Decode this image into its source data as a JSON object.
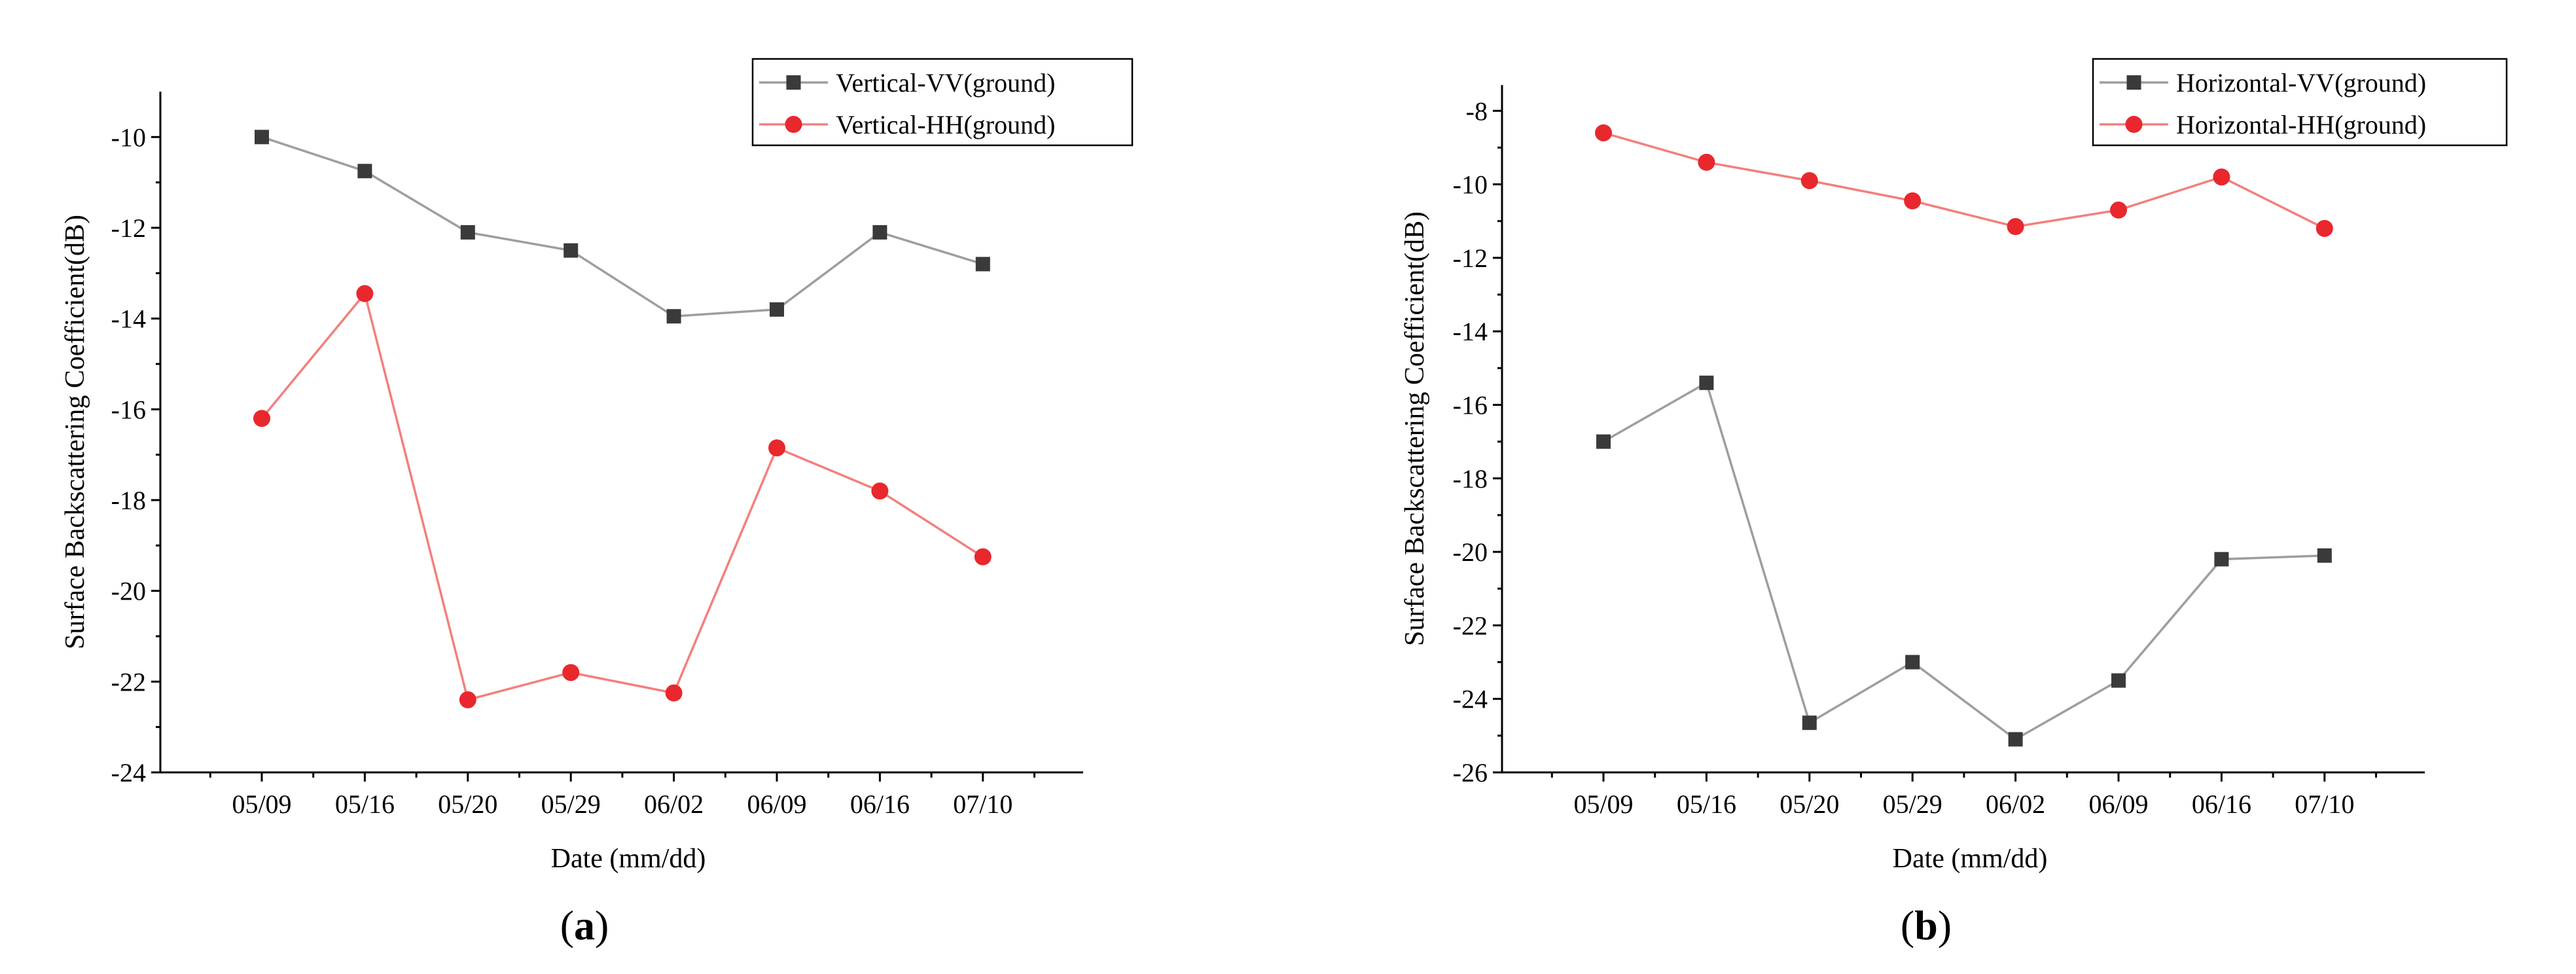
{
  "chart_data": [
    {
      "type": "line",
      "panel": "a",
      "xlabel": "Date (mm/dd)",
      "ylabel": "Surface Backscattering Coefficient(dB)",
      "categories": [
        "05/09",
        "05/16",
        "05/20",
        "05/29",
        "06/02",
        "06/09",
        "06/16",
        "07/10"
      ],
      "yticks": [
        -24,
        -22,
        -20,
        -18,
        -16,
        -14,
        -12,
        -10
      ],
      "ylim": [
        -24,
        -9
      ],
      "legend_position": "top-right",
      "series": [
        {
          "name": "Vertical-VV(ground)",
          "marker": "square",
          "color": "#9e9e9e",
          "marker_color": "#3a3a3a",
          "values": [
            -10.0,
            -10.75,
            -12.1,
            -12.5,
            -13.95,
            -13.8,
            -12.1,
            -12.8
          ]
        },
        {
          "name": "Vertical-HH(ground)",
          "marker": "circle",
          "color": "#f2807d",
          "marker_color": "#e8282d",
          "values": [
            -16.2,
            -13.45,
            -22.4,
            -21.8,
            -22.25,
            -16.85,
            -17.8,
            -19.25
          ]
        }
      ]
    },
    {
      "type": "line",
      "panel": "b",
      "xlabel": "Date (mm/dd)",
      "ylabel": "Surface Backscattering Coefficient(dB)",
      "categories": [
        "05/09",
        "05/16",
        "05/20",
        "05/29",
        "06/02",
        "06/09",
        "06/16",
        "07/10"
      ],
      "yticks": [
        -26,
        -24,
        -22,
        -20,
        -18,
        -16,
        -14,
        -12,
        -10,
        -8
      ],
      "ylim": [
        -26,
        -7.3
      ],
      "legend_position": "top-right",
      "series": [
        {
          "name": "Horizontal-VV(ground)",
          "marker": "square",
          "color": "#9e9e9e",
          "marker_color": "#3a3a3a",
          "values": [
            -17.0,
            -15.4,
            -24.65,
            -23.0,
            -25.1,
            -23.5,
            -20.2,
            -20.1
          ]
        },
        {
          "name": "Horizontal-HH(ground)",
          "marker": "circle",
          "color": "#f2807d",
          "marker_color": "#e8282d",
          "values": [
            -8.6,
            -9.4,
            -9.9,
            -10.45,
            -11.15,
            -10.7,
            -9.8,
            -11.2
          ]
        }
      ]
    }
  ],
  "panel_labels": [
    "a",
    "b"
  ]
}
